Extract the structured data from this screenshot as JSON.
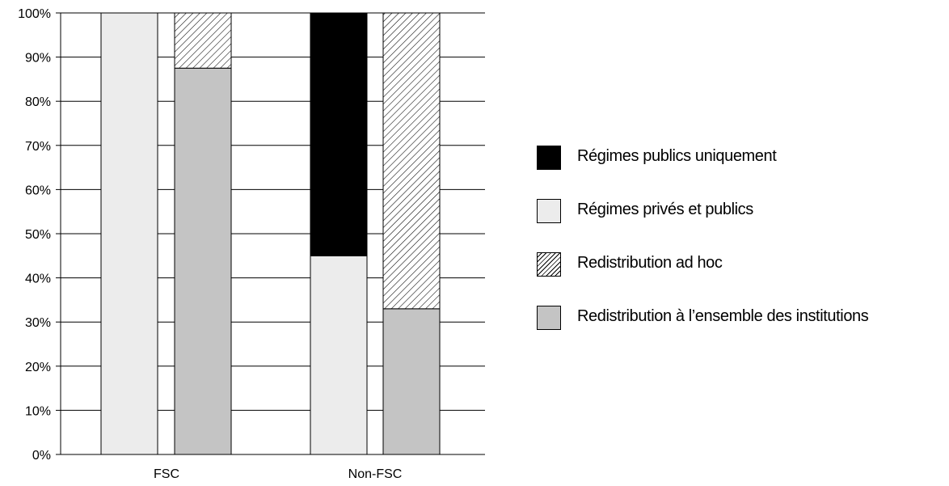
{
  "chart_data": {
    "type": "bar",
    "stacked": true,
    "grid": true,
    "legend_position": "right",
    "ylim": [
      0,
      100
    ],
    "y_ticks": [
      "0%",
      "10%",
      "20%",
      "30%",
      "40%",
      "50%",
      "60%",
      "70%",
      "80%",
      "90%",
      "100%"
    ],
    "categories": [
      "FSC",
      "Non-FSC"
    ],
    "bars": [
      {
        "category": "FSC",
        "segments": [
          {
            "series": "Régimes privés et publics",
            "value": 100
          }
        ]
      },
      {
        "category": "FSC",
        "segments": [
          {
            "series": "Redistribution à l’ensemble des institutions",
            "value": 87.5
          },
          {
            "series": "Redistribution ad hoc",
            "value": 12.5
          }
        ]
      },
      {
        "category": "Non-FSC",
        "segments": [
          {
            "series": "Régimes privés et publics",
            "value": 45
          },
          {
            "series": "Régimes publics uniquement",
            "value": 55
          }
        ]
      },
      {
        "category": "Non-FSC",
        "segments": [
          {
            "series": "Redistribution à l’ensemble des institutions",
            "value": 33
          },
          {
            "series": "Redistribution ad hoc",
            "value": 67
          }
        ]
      }
    ],
    "series": [
      {
        "name": "Régimes publics uniquement",
        "color": "#000000",
        "pattern": "solid"
      },
      {
        "name": "Régimes privés et publics",
        "color": "#ececec",
        "pattern": "solid"
      },
      {
        "name": "Redistribution ad hoc",
        "color": "#ffffff",
        "pattern": "hatch"
      },
      {
        "name": "Redistribution à l’ensemble des institutions",
        "color": "#c4c4c4",
        "pattern": "solid"
      }
    ]
  },
  "legend": {
    "items": [
      {
        "label": "Régimes publics uniquement"
      },
      {
        "label": "Régimes privés et publics"
      },
      {
        "label": "Redistribution ad hoc"
      },
      {
        "label": "Redistribution à l’ensemble des institutions"
      }
    ]
  }
}
